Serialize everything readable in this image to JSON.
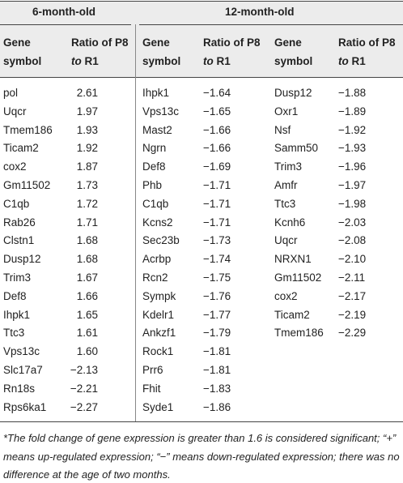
{
  "table": {
    "groups": [
      "6-month-old",
      "12-month-old"
    ],
    "header": {
      "gene": [
        "Gene",
        "symbol"
      ],
      "ratio_pre": "Ratio of P8",
      "ratio_italic": "to",
      "ratio_post": "R1"
    },
    "six_month": [
      [
        "pol",
        "2.61"
      ],
      [
        "Uqcr",
        "1.97"
      ],
      [
        "Tmem186",
        "1.93"
      ],
      [
        "Ticam2",
        "1.92"
      ],
      [
        "cox2",
        "1.87"
      ],
      [
        "Gm11502",
        "1.73"
      ],
      [
        "C1qb",
        "1.72"
      ],
      [
        "Rab26",
        "1.71"
      ],
      [
        "Clstn1",
        "1.68"
      ],
      [
        "Dusp12",
        "1.68"
      ],
      [
        "Trim3",
        "1.67"
      ],
      [
        "Def8",
        "1.66"
      ],
      [
        "Ihpk1",
        "1.65"
      ],
      [
        "Ttc3",
        "1.61"
      ],
      [
        "Vps13c",
        "1.60"
      ],
      [
        "Slc17a7",
        "−2.13"
      ],
      [
        "Rn18s",
        "−2.21"
      ],
      [
        "Rps6ka1",
        "−2.27"
      ]
    ],
    "twelve_month_left": [
      [
        "Ihpk1",
        "−1.64"
      ],
      [
        "Vps13c",
        "−1.65"
      ],
      [
        "Mast2",
        "−1.66"
      ],
      [
        "Ngrn",
        "−1.66"
      ],
      [
        "Def8",
        "−1.69"
      ],
      [
        "Phb",
        "−1.71"
      ],
      [
        "C1qb",
        "−1.71"
      ],
      [
        "Kcns2",
        "−1.71"
      ],
      [
        "Sec23b",
        "−1.73"
      ],
      [
        "Acrbp",
        "−1.74"
      ],
      [
        "Rcn2",
        "−1.75"
      ],
      [
        "Sympk",
        "−1.76"
      ],
      [
        "Kdelr1",
        "−1.77"
      ],
      [
        "Ankzf1",
        "−1.79"
      ],
      [
        "Rock1",
        "−1.81"
      ],
      [
        "Prr6",
        "−1.81"
      ],
      [
        "Fhit",
        "−1.83"
      ],
      [
        "Syde1",
        "−1.86"
      ]
    ],
    "twelve_month_right": [
      [
        "Dusp12",
        "−1.88"
      ],
      [
        "Oxr1",
        "−1.89"
      ],
      [
        "Nsf",
        "−1.92"
      ],
      [
        "Samm50",
        "−1.93"
      ],
      [
        "Trim3",
        "−1.96"
      ],
      [
        "Amfr",
        "−1.97"
      ],
      [
        "Ttc3",
        "−1.98"
      ],
      [
        "Kcnh6",
        "−2.03"
      ],
      [
        "Uqcr",
        "−2.08"
      ],
      [
        "NRXN1",
        "−2.10"
      ],
      [
        "Gm11502",
        "−2.11"
      ],
      [
        "cox2",
        "−2.17"
      ],
      [
        "Ticam2",
        "−2.19"
      ],
      [
        "Tmem186",
        "−2.29"
      ]
    ],
    "footnote": "*The fold change of gene expression is greater than 1.6 is considered significant; “+” means up-regulated expression; “−” means down-regulated expression; there was no difference at the age of two months."
  }
}
